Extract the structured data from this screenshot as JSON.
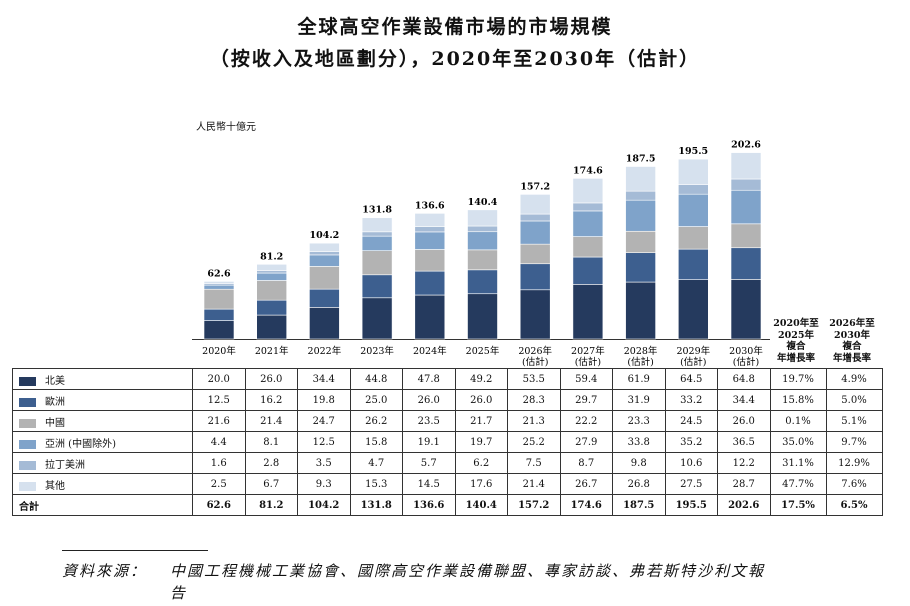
{
  "title_line1": "全球高空作業設備市場的市場規模",
  "title_line2": "（按收入及地區劃分），2020年至2030年（估計）",
  "chart_data": {
    "type": "bar",
    "stacked": true,
    "title": "全球高空作業設備市場的市場規模（按收入及地區劃分），2020年至2030年（估計）",
    "ylabel": "人民幣十億元",
    "categories": [
      [
        "2020年"
      ],
      [
        "2021年"
      ],
      [
        "2022年"
      ],
      [
        "2023年"
      ],
      [
        "2024年"
      ],
      [
        "2025年"
      ],
      [
        "2026年",
        "(估計)"
      ],
      [
        "2027年",
        "(估計)"
      ],
      [
        "2028年",
        "(估計)"
      ],
      [
        "2029年",
        "(估計)"
      ],
      [
        "2030年",
        "(估計)"
      ]
    ],
    "series": [
      {
        "name": "北美",
        "color": "#253a5e",
        "values": [
          20.0,
          26.0,
          34.4,
          44.8,
          47.8,
          49.2,
          53.5,
          59.4,
          61.9,
          64.5,
          64.8
        ],
        "cagr": [
          "19.7%",
          "4.9%"
        ]
      },
      {
        "name": "歐洲",
        "color": "#3d5f8f",
        "values": [
          12.5,
          16.2,
          19.8,
          25.0,
          26.0,
          26.0,
          28.3,
          29.7,
          31.9,
          33.2,
          34.4
        ],
        "cagr": [
          "15.8%",
          "5.0%"
        ]
      },
      {
        "name": "中國",
        "color": "#b3b3b3",
        "values": [
          21.6,
          21.4,
          24.7,
          26.2,
          23.5,
          21.7,
          21.3,
          22.2,
          23.3,
          24.5,
          26.0
        ],
        "cagr": [
          "0.1%",
          "5.1%"
        ]
      },
      {
        "name": "亞洲 (中國除外)",
        "color": "#7fa3ca",
        "values": [
          4.4,
          8.1,
          12.5,
          15.8,
          19.1,
          19.7,
          25.2,
          27.9,
          33.8,
          35.2,
          36.5
        ],
        "cagr": [
          "35.0%",
          "9.7%"
        ]
      },
      {
        "name": "拉丁美洲",
        "color": "#a5bbd6",
        "values": [
          1.6,
          2.8,
          3.5,
          4.7,
          5.7,
          6.2,
          7.5,
          8.7,
          9.8,
          10.6,
          12.2
        ],
        "cagr": [
          "31.1%",
          "12.9%"
        ]
      },
      {
        "name": "其他",
        "color": "#d6e1ee",
        "values": [
          2.5,
          6.7,
          9.3,
          15.3,
          14.5,
          17.6,
          21.4,
          26.7,
          26.8,
          27.5,
          28.7
        ],
        "cagr": [
          "47.7%",
          "7.6%"
        ]
      }
    ],
    "totals": {
      "name": "合計",
      "values": [
        62.6,
        81.2,
        104.2,
        131.8,
        136.6,
        140.4,
        157.2,
        174.6,
        187.5,
        195.5,
        202.6
      ],
      "cagr": [
        "17.5%",
        "6.5%"
      ]
    },
    "cagr_headers": [
      [
        "2020年至",
        "2025年",
        "複合",
        "年增長率"
      ],
      [
        "2026年至",
        "2030年",
        "複合",
        "年增長率"
      ]
    ],
    "ylim": [
      0,
      210
    ],
    "grid": false,
    "legend": "table-left"
  },
  "source": {
    "label": "資料來源：",
    "text": "中國工程機械工業協會、國際高空作業設備聯盟、專家訪談、弗若斯特沙利文報",
    "text_cont": "告"
  }
}
